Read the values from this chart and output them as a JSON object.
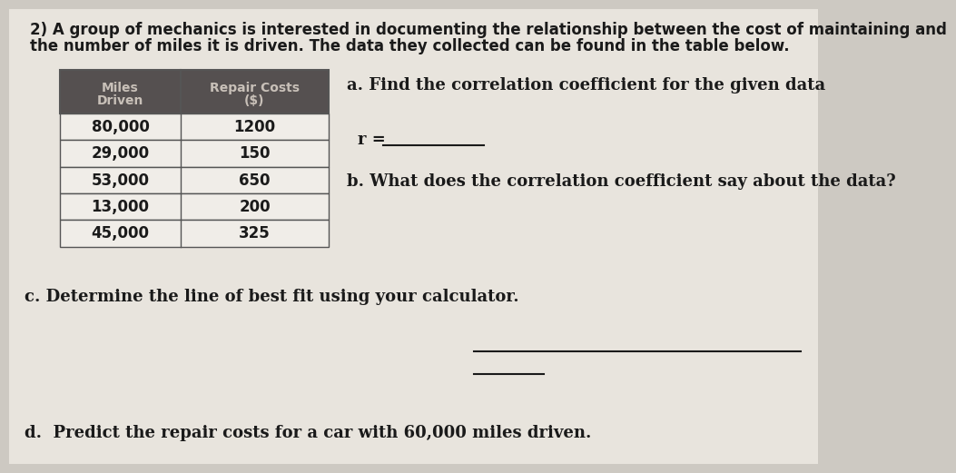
{
  "intro_text_line1": "2) A group of mechanics is interested in documenting the relationship between the cost of maintaining and",
  "intro_text_line2": "the number of miles it is driven. The data they collected can be found in the table below.",
  "table_header_col1_line1": "Miles",
  "table_header_col1_line2": "Driven",
  "table_header_col2_line1": "Repair Costs",
  "table_header_col2_line2": "($)",
  "table_data": [
    [
      "80,000",
      "1200"
    ],
    [
      "29,000",
      "150"
    ],
    [
      "53,000",
      "650"
    ],
    [
      "13,000",
      "200"
    ],
    [
      "45,000",
      "325"
    ]
  ],
  "part_a_label": "a. Find the correlation coefficient for the given data",
  "part_b_label": "b. What does the correlation coefficient say about the data?",
  "part_c_label": "c. Determine the line of best fit using your calculator.",
  "part_d_label": "d.  Predict the repair costs for a car with 60,000 miles driven.",
  "background_color": "#cdc9c2",
  "paper_color": "#e8e4dd",
  "table_header_bg": "#555050",
  "table_header_text": "#c8c0b8",
  "table_row_bg": "#f0ede8",
  "table_border": "#555555",
  "text_color": "#1a1a1a",
  "font_size_intro": 12,
  "font_size_body": 13,
  "font_size_table_header": 10,
  "font_size_table_data": 12
}
